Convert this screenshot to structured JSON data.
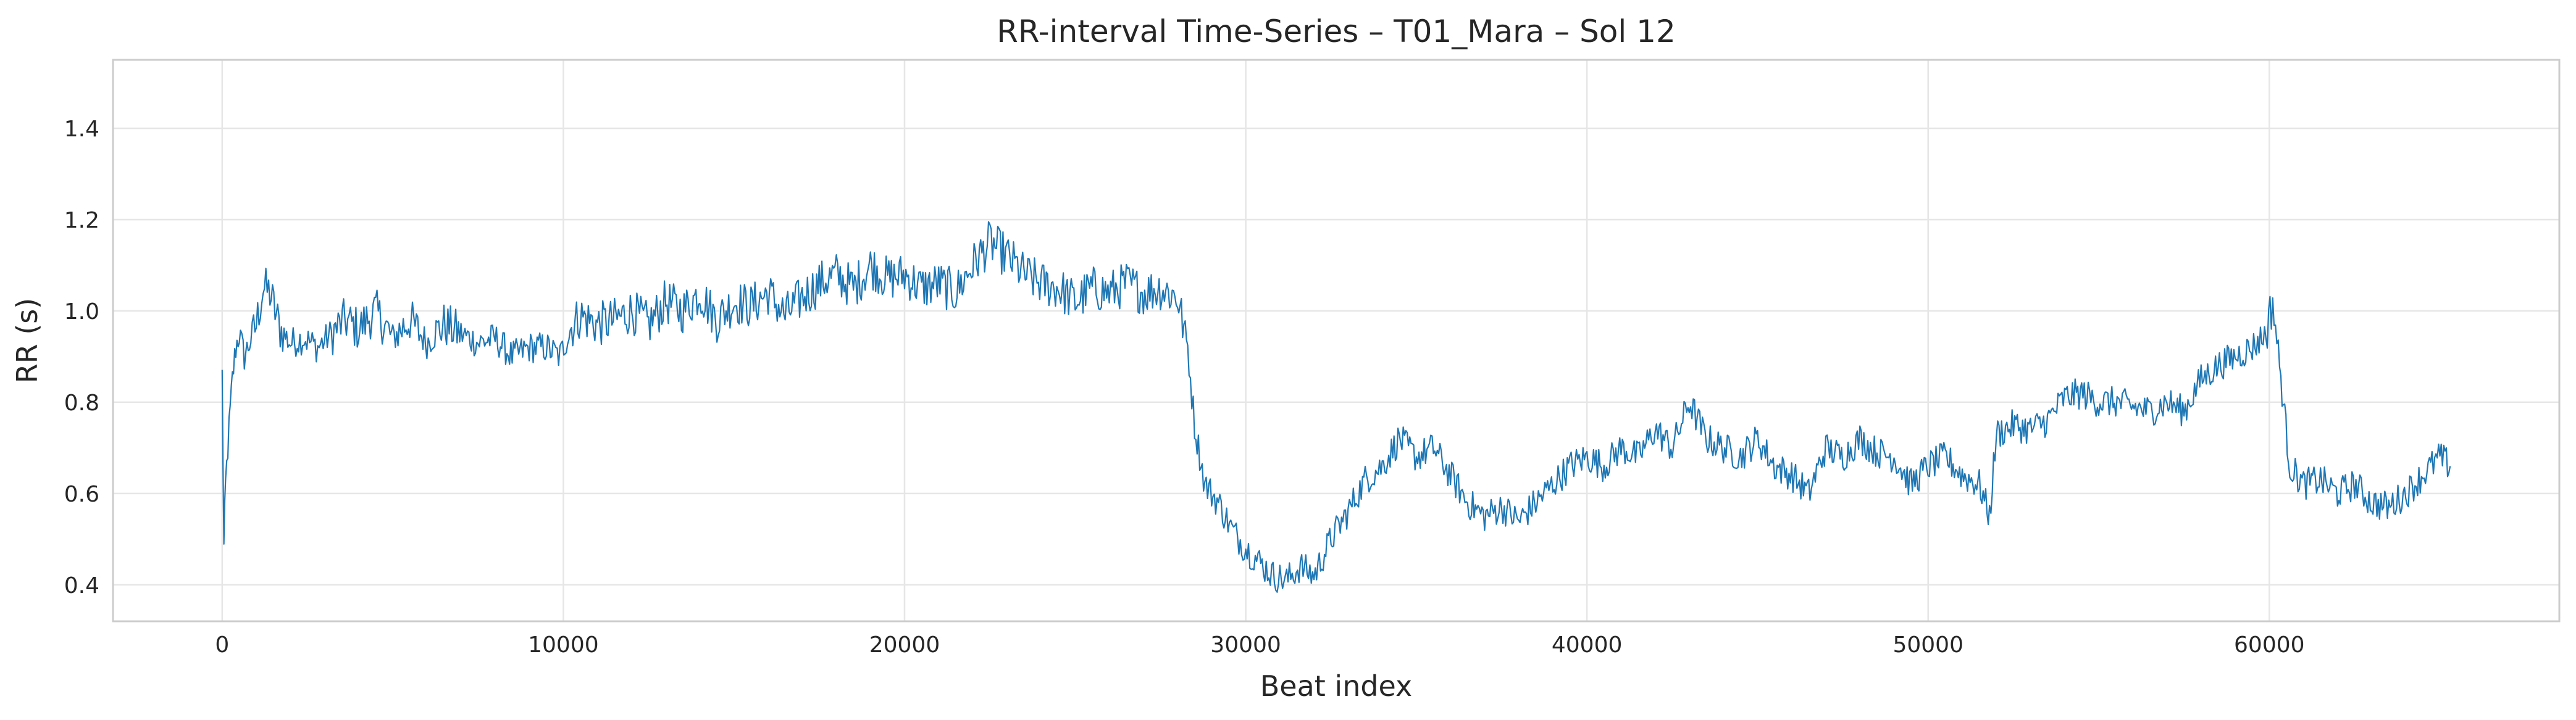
{
  "colors": {
    "series": "#1f77b4",
    "background": "#ffffff",
    "grid": "#e6e6e6",
    "frame": "#cccccc",
    "text": "#262626"
  },
  "chart_data": {
    "type": "line",
    "title": "RR-interval Time-Series – T01_Mara – Sol 12",
    "xlabel": "Beat index",
    "ylabel": "RR (s)",
    "xlim": [
      -3200,
      68500
    ],
    "ylim": [
      0.32,
      1.55
    ],
    "xticks": [
      0,
      10000,
      20000,
      30000,
      40000,
      50000,
      60000
    ],
    "xtick_labels": [
      "0",
      "10000",
      "20000",
      "30000",
      "40000",
      "50000",
      "60000"
    ],
    "yticks": [
      0.4,
      0.6,
      0.8,
      1.0,
      1.2,
      1.4
    ],
    "ytick_labels": [
      "0.4",
      "0.6",
      "0.8",
      "1.0",
      "1.2",
      "1.4"
    ],
    "grid": true,
    "series": [
      {
        "color": "#1f77b4",
        "x": [
          0,
          50,
          100,
          200,
          300,
          400,
          500,
          650,
          800,
          1000,
          1200,
          1400,
          1700,
          2000,
          2400,
          2800,
          3200,
          3600,
          4000,
          4500,
          5000,
          5500,
          6000,
          6500,
          7000,
          7500,
          8000,
          8500,
          9000,
          9500,
          9900,
          10200,
          10500,
          11000,
          11500,
          12000,
          12500,
          13000,
          13500,
          14000,
          14500,
          15000,
          15500,
          16000,
          16500,
          17000,
          17500,
          18000,
          18500,
          19000,
          19500,
          20000,
          20500,
          21000,
          21500,
          22000,
          22500,
          23000,
          23500,
          24000,
          24500,
          25000,
          25500,
          26000,
          26500,
          27000,
          27500,
          28000,
          28300,
          28500,
          28800,
          29200,
          29600,
          30000,
          30400,
          30800,
          31200,
          31600,
          32000,
          32500,
          33000,
          33500,
          34000,
          34500,
          35000,
          35500,
          36000,
          36500,
          37000,
          37500,
          38000,
          38500,
          39000,
          39500,
          40000,
          40500,
          41000,
          41500,
          42000,
          42500,
          43000,
          43500,
          44000,
          44500,
          45000,
          45500,
          46000,
          46500,
          47000,
          47500,
          48000,
          48500,
          49000,
          49500,
          50000,
          50500,
          51000,
          51500,
          51800,
          52000,
          52500,
          53000,
          53500,
          54000,
          54500,
          55000,
          55500,
          56000,
          56500,
          57000,
          57500,
          58000,
          58500,
          59000,
          59500,
          59900,
          60100,
          60300,
          60600,
          61000,
          61500,
          62000,
          62500,
          63000,
          63500,
          64000,
          64500,
          65000,
          65300
        ],
        "y": [
          0.86,
          0.48,
          0.62,
          0.74,
          0.85,
          0.92,
          0.95,
          0.9,
          0.93,
          0.97,
          1.05,
          1.04,
          0.96,
          0.93,
          0.94,
          0.92,
          0.95,
          0.98,
          0.96,
          1.0,
          0.94,
          0.98,
          0.93,
          0.97,
          0.95,
          0.93,
          0.94,
          0.9,
          0.92,
          0.92,
          0.9,
          0.96,
          0.99,
          0.97,
          0.98,
          1.0,
          0.97,
          1.02,
          1.0,
          1.04,
          0.98,
          1.02,
          1.01,
          1.04,
          0.99,
          1.03,
          1.06,
          1.08,
          1.05,
          1.1,
          1.07,
          1.08,
          1.05,
          1.06,
          1.04,
          1.1,
          1.15,
          1.12,
          1.08,
          1.06,
          1.05,
          1.02,
          1.05,
          1.04,
          1.06,
          1.04,
          1.05,
          1.03,
          0.92,
          0.75,
          0.62,
          0.58,
          0.52,
          0.48,
          0.45,
          0.42,
          0.41,
          0.44,
          0.42,
          0.5,
          0.56,
          0.63,
          0.66,
          0.72,
          0.68,
          0.7,
          0.64,
          0.58,
          0.55,
          0.57,
          0.54,
          0.58,
          0.62,
          0.66,
          0.68,
          0.66,
          0.7,
          0.68,
          0.74,
          0.7,
          0.8,
          0.72,
          0.7,
          0.68,
          0.72,
          0.66,
          0.64,
          0.6,
          0.7,
          0.68,
          0.72,
          0.69,
          0.68,
          0.62,
          0.66,
          0.68,
          0.64,
          0.62,
          0.55,
          0.73,
          0.75,
          0.74,
          0.76,
          0.81,
          0.82,
          0.8,
          0.8,
          0.79,
          0.78,
          0.8,
          0.78,
          0.85,
          0.88,
          0.9,
          0.92,
          0.95,
          1.02,
          0.88,
          0.66,
          0.62,
          0.63,
          0.6,
          0.62,
          0.58,
          0.57,
          0.6,
          0.64,
          0.68,
          0.66
        ]
      }
    ]
  }
}
